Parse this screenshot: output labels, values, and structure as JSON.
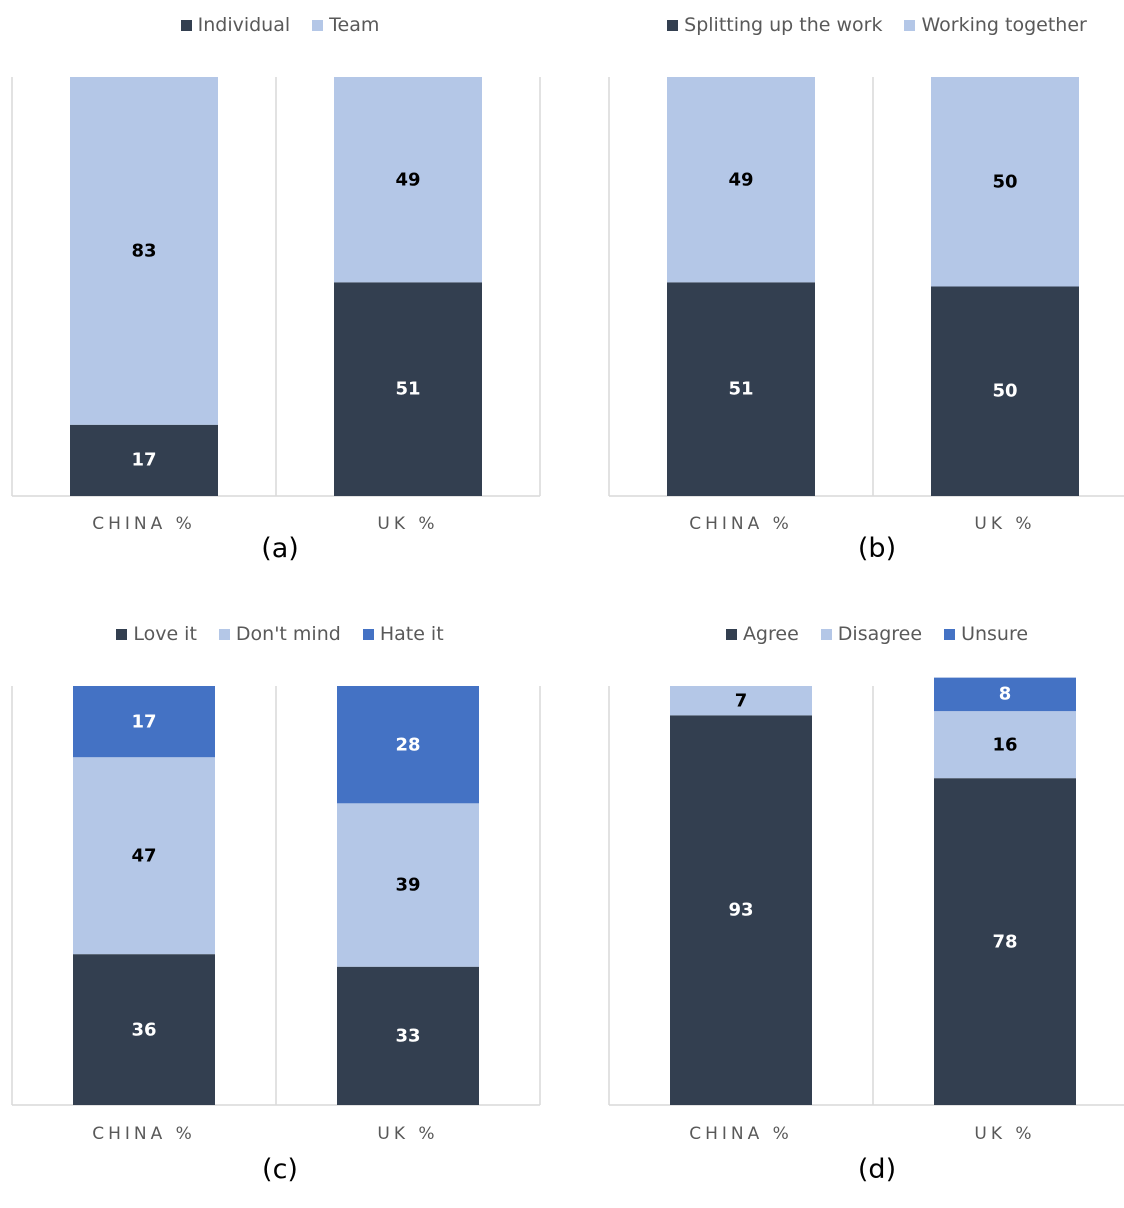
{
  "chart_data": [
    {
      "type": "bar",
      "stacked": true,
      "caption": "(a)",
      "categories": [
        "CHINA %",
        "UK %"
      ],
      "series": [
        {
          "name": "Individual",
          "values": [
            17,
            51
          ],
          "color": "#333F50"
        },
        {
          "name": "Team",
          "values": [
            83,
            49
          ],
          "color": "#B4C7E7"
        }
      ],
      "ylim": [
        0,
        100
      ],
      "grid": false,
      "legend_position": "top"
    },
    {
      "type": "bar",
      "stacked": true,
      "caption": "(b)",
      "categories": [
        "CHINA %",
        "UK %"
      ],
      "series": [
        {
          "name": "Splitting up the work",
          "values": [
            51,
            50
          ],
          "color": "#333F50"
        },
        {
          "name": "Working together",
          "values": [
            49,
            50
          ],
          "color": "#B4C7E7"
        }
      ],
      "ylim": [
        0,
        100
      ],
      "grid": false,
      "legend_position": "top"
    },
    {
      "type": "bar",
      "stacked": true,
      "caption": "(c)",
      "categories": [
        "CHINA %",
        "UK %"
      ],
      "series": [
        {
          "name": "Love it",
          "values": [
            36,
            33
          ],
          "color": "#333F50"
        },
        {
          "name": "Don't mind",
          "values": [
            47,
            39
          ],
          "color": "#B4C7E7"
        },
        {
          "name": "Hate it",
          "values": [
            17,
            28
          ],
          "color": "#4472C4"
        }
      ],
      "ylim": [
        0,
        100
      ],
      "grid": false,
      "legend_position": "top"
    },
    {
      "type": "bar",
      "stacked": true,
      "caption": "(d)",
      "categories": [
        "CHINA %",
        "UK %"
      ],
      "series": [
        {
          "name": "Agree",
          "values": [
            93,
            78
          ],
          "color": "#333F50"
        },
        {
          "name": "Disagree",
          "values": [
            7,
            16
          ],
          "color": "#B4C7E7"
        },
        {
          "name": "Unsure",
          "values": [
            0,
            8
          ],
          "color": "#4472C4"
        }
      ],
      "ylim": [
        0,
        100
      ],
      "grid": false,
      "legend_position": "top"
    }
  ]
}
